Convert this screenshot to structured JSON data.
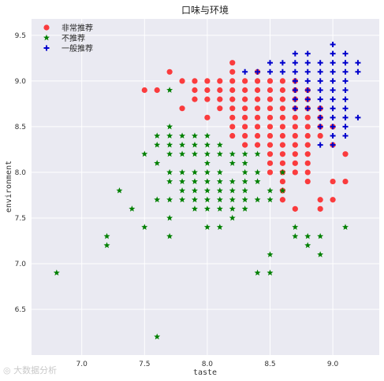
{
  "chart_data": {
    "type": "scatter",
    "title": "口味与环境",
    "xlabel": "taste",
    "ylabel": "environment",
    "xlim": [
      6.6,
      9.37
    ],
    "ylim": [
      6.0,
      9.68
    ],
    "xticks": [
      "7.0",
      "7.5",
      "8.0",
      "8.5",
      "9.0"
    ],
    "yticks": [
      "6.5",
      "7.0",
      "7.5",
      "8.0",
      "8.5",
      "9.0",
      "9.5"
    ],
    "xtick_values": [
      7.0,
      7.5,
      8.0,
      8.5,
      9.0
    ],
    "ytick_values": [
      6.5,
      7.0,
      7.5,
      8.0,
      8.5,
      9.0,
      9.5
    ],
    "grid": true,
    "legend_position": "top-left",
    "colors": {
      "background": "#eaeaf2",
      "grid": "#ffffff",
      "axis_text": "#333333"
    },
    "series": [
      {
        "name": "非常推荐",
        "marker": "circle",
        "color": "#ff0000",
        "points": [
          [
            7.5,
            8.9
          ],
          [
            7.6,
            8.9
          ],
          [
            7.7,
            9.1
          ],
          [
            7.8,
            8.7
          ],
          [
            7.8,
            9.0
          ],
          [
            7.9,
            8.8
          ],
          [
            7.9,
            8.9
          ],
          [
            7.9,
            9.0
          ],
          [
            8.0,
            8.6
          ],
          [
            8.0,
            8.8
          ],
          [
            8.0,
            8.9
          ],
          [
            8.0,
            9.0
          ],
          [
            8.1,
            8.7
          ],
          [
            8.1,
            8.8
          ],
          [
            8.1,
            8.9
          ],
          [
            8.1,
            9.0
          ],
          [
            8.2,
            8.4
          ],
          [
            8.2,
            8.5
          ],
          [
            8.2,
            8.6
          ],
          [
            8.2,
            8.7
          ],
          [
            8.2,
            8.8
          ],
          [
            8.2,
            8.9
          ],
          [
            8.2,
            9.0
          ],
          [
            8.2,
            9.1
          ],
          [
            8.2,
            9.2
          ],
          [
            8.3,
            8.3
          ],
          [
            8.3,
            8.4
          ],
          [
            8.3,
            8.5
          ],
          [
            8.3,
            8.6
          ],
          [
            8.3,
            8.7
          ],
          [
            8.3,
            8.8
          ],
          [
            8.3,
            8.9
          ],
          [
            8.3,
            9.0
          ],
          [
            8.4,
            8.3
          ],
          [
            8.4,
            8.4
          ],
          [
            8.4,
            8.5
          ],
          [
            8.4,
            8.6
          ],
          [
            8.4,
            8.7
          ],
          [
            8.4,
            8.8
          ],
          [
            8.4,
            8.9
          ],
          [
            8.4,
            9.0
          ],
          [
            8.4,
            9.1
          ],
          [
            8.5,
            8.0
          ],
          [
            8.5,
            8.1
          ],
          [
            8.5,
            8.2
          ],
          [
            8.5,
            8.3
          ],
          [
            8.5,
            8.4
          ],
          [
            8.5,
            8.5
          ],
          [
            8.5,
            8.6
          ],
          [
            8.5,
            8.7
          ],
          [
            8.5,
            8.8
          ],
          [
            8.5,
            8.9
          ],
          [
            8.5,
            9.0
          ],
          [
            8.6,
            7.7
          ],
          [
            8.6,
            7.8
          ],
          [
            8.6,
            7.9
          ],
          [
            8.6,
            8.0
          ],
          [
            8.6,
            8.1
          ],
          [
            8.6,
            8.2
          ],
          [
            8.6,
            8.3
          ],
          [
            8.6,
            8.4
          ],
          [
            8.6,
            8.5
          ],
          [
            8.6,
            8.6
          ],
          [
            8.6,
            8.7
          ],
          [
            8.6,
            8.8
          ],
          [
            8.6,
            8.9
          ],
          [
            8.6,
            9.0
          ],
          [
            8.7,
            7.6
          ],
          [
            8.7,
            8.0
          ],
          [
            8.7,
            8.1
          ],
          [
            8.7,
            8.2
          ],
          [
            8.7,
            8.3
          ],
          [
            8.7,
            8.4
          ],
          [
            8.7,
            8.5
          ],
          [
            8.7,
            8.6
          ],
          [
            8.7,
            8.7
          ],
          [
            8.7,
            8.8
          ],
          [
            8.7,
            8.9
          ],
          [
            8.7,
            9.0
          ],
          [
            8.8,
            7.9
          ],
          [
            8.8,
            8.0
          ],
          [
            8.8,
            8.1
          ],
          [
            8.8,
            8.2
          ],
          [
            8.8,
            8.3
          ],
          [
            8.8,
            8.4
          ],
          [
            8.8,
            8.5
          ],
          [
            8.8,
            8.6
          ],
          [
            8.8,
            8.7
          ],
          [
            8.8,
            8.8
          ],
          [
            8.8,
            8.9
          ],
          [
            8.9,
            7.6
          ],
          [
            8.9,
            7.7
          ],
          [
            8.9,
            8.4
          ],
          [
            8.9,
            8.5
          ],
          [
            8.9,
            8.6
          ],
          [
            8.9,
            8.7
          ],
          [
            9.0,
            7.7
          ],
          [
            9.0,
            7.9
          ],
          [
            9.0,
            8.3
          ],
          [
            9.0,
            8.5
          ],
          [
            9.1,
            7.9
          ],
          [
            9.1,
            8.2
          ]
        ]
      },
      {
        "name": "不推荐",
        "marker": "star",
        "color": "#008000",
        "points": [
          [
            6.8,
            6.9
          ],
          [
            7.2,
            7.3
          ],
          [
            7.2,
            7.2
          ],
          [
            7.3,
            7.8
          ],
          [
            7.4,
            7.6
          ],
          [
            7.5,
            7.4
          ],
          [
            7.5,
            8.2
          ],
          [
            7.6,
            8.4
          ],
          [
            7.6,
            8.3
          ],
          [
            7.6,
            8.1
          ],
          [
            7.6,
            7.7
          ],
          [
            7.6,
            6.2
          ],
          [
            7.7,
            8.9
          ],
          [
            7.7,
            8.5
          ],
          [
            7.7,
            8.4
          ],
          [
            7.7,
            8.3
          ],
          [
            7.7,
            8.2
          ],
          [
            7.7,
            8.0
          ],
          [
            7.7,
            7.9
          ],
          [
            7.7,
            7.7
          ],
          [
            7.7,
            7.5
          ],
          [
            7.7,
            7.3
          ],
          [
            7.8,
            8.4
          ],
          [
            7.8,
            8.3
          ],
          [
            7.8,
            8.2
          ],
          [
            7.8,
            8.0
          ],
          [
            7.8,
            7.9
          ],
          [
            7.8,
            7.8
          ],
          [
            7.8,
            7.7
          ],
          [
            7.9,
            8.4
          ],
          [
            7.9,
            8.3
          ],
          [
            7.9,
            8.2
          ],
          [
            7.9,
            8.0
          ],
          [
            7.9,
            7.9
          ],
          [
            7.9,
            7.8
          ],
          [
            7.9,
            7.7
          ],
          [
            7.9,
            7.6
          ],
          [
            8.0,
            8.4
          ],
          [
            8.0,
            8.3
          ],
          [
            8.0,
            8.2
          ],
          [
            8.0,
            8.1
          ],
          [
            8.0,
            8.0
          ],
          [
            8.0,
            7.9
          ],
          [
            8.0,
            7.8
          ],
          [
            8.0,
            7.7
          ],
          [
            8.0,
            7.6
          ],
          [
            8.0,
            7.4
          ],
          [
            8.1,
            8.3
          ],
          [
            8.1,
            8.2
          ],
          [
            8.1,
            8.0
          ],
          [
            8.1,
            7.9
          ],
          [
            8.1,
            7.8
          ],
          [
            8.1,
            7.7
          ],
          [
            8.1,
            7.6
          ],
          [
            8.1,
            7.4
          ],
          [
            8.2,
            8.2
          ],
          [
            8.2,
            8.1
          ],
          [
            8.2,
            7.9
          ],
          [
            8.2,
            7.8
          ],
          [
            8.2,
            7.7
          ],
          [
            8.2,
            7.6
          ],
          [
            8.2,
            7.5
          ],
          [
            8.3,
            8.2
          ],
          [
            8.3,
            8.1
          ],
          [
            8.3,
            8.0
          ],
          [
            8.3,
            7.9
          ],
          [
            8.3,
            7.8
          ],
          [
            8.3,
            7.7
          ],
          [
            8.3,
            7.6
          ],
          [
            8.4,
            8.2
          ],
          [
            8.4,
            8.0
          ],
          [
            8.4,
            7.9
          ],
          [
            8.4,
            7.7
          ],
          [
            8.4,
            6.9
          ],
          [
            8.5,
            7.8
          ],
          [
            8.5,
            7.7
          ],
          [
            8.5,
            7.1
          ],
          [
            8.5,
            6.9
          ],
          [
            8.6,
            8.0
          ],
          [
            8.6,
            7.8
          ],
          [
            8.7,
            7.4
          ],
          [
            8.7,
            7.3
          ],
          [
            8.8,
            7.3
          ],
          [
            8.8,
            7.2
          ],
          [
            8.9,
            7.3
          ],
          [
            8.9,
            7.1
          ],
          [
            9.1,
            7.4
          ]
        ]
      },
      {
        "name": "一般推荐",
        "marker": "plus",
        "color": "#0000cc",
        "points": [
          [
            8.3,
            9.1
          ],
          [
            8.4,
            9.1
          ],
          [
            8.5,
            9.2
          ],
          [
            8.5,
            9.1
          ],
          [
            8.6,
            9.2
          ],
          [
            8.6,
            9.1
          ],
          [
            8.7,
            9.3
          ],
          [
            8.7,
            9.2
          ],
          [
            8.7,
            9.1
          ],
          [
            8.7,
            9.0
          ],
          [
            8.7,
            8.9
          ],
          [
            8.7,
            8.8
          ],
          [
            8.7,
            8.7
          ],
          [
            8.8,
            9.3
          ],
          [
            8.8,
            9.2
          ],
          [
            8.8,
            9.1
          ],
          [
            8.8,
            9.0
          ],
          [
            8.8,
            8.9
          ],
          [
            8.8,
            8.8
          ],
          [
            8.8,
            8.7
          ],
          [
            8.9,
            9.2
          ],
          [
            8.9,
            9.1
          ],
          [
            8.9,
            9.0
          ],
          [
            8.9,
            8.9
          ],
          [
            8.9,
            8.8
          ],
          [
            8.9,
            8.7
          ],
          [
            8.9,
            8.6
          ],
          [
            8.9,
            8.5
          ],
          [
            8.9,
            8.3
          ],
          [
            9.0,
            9.4
          ],
          [
            9.0,
            9.3
          ],
          [
            9.0,
            9.2
          ],
          [
            9.0,
            9.1
          ],
          [
            9.0,
            9.0
          ],
          [
            9.0,
            8.9
          ],
          [
            9.0,
            8.8
          ],
          [
            9.0,
            8.7
          ],
          [
            9.0,
            8.6
          ],
          [
            9.0,
            8.5
          ],
          [
            9.0,
            8.4
          ],
          [
            9.0,
            8.3
          ],
          [
            9.1,
            9.3
          ],
          [
            9.1,
            9.2
          ],
          [
            9.1,
            9.1
          ],
          [
            9.1,
            9.0
          ],
          [
            9.1,
            8.9
          ],
          [
            9.1,
            8.8
          ],
          [
            9.1,
            8.7
          ],
          [
            9.1,
            8.6
          ],
          [
            9.1,
            8.5
          ],
          [
            9.1,
            8.4
          ],
          [
            9.2,
            9.2
          ],
          [
            9.2,
            9.1
          ],
          [
            9.2,
            8.6
          ]
        ]
      }
    ]
  }
}
